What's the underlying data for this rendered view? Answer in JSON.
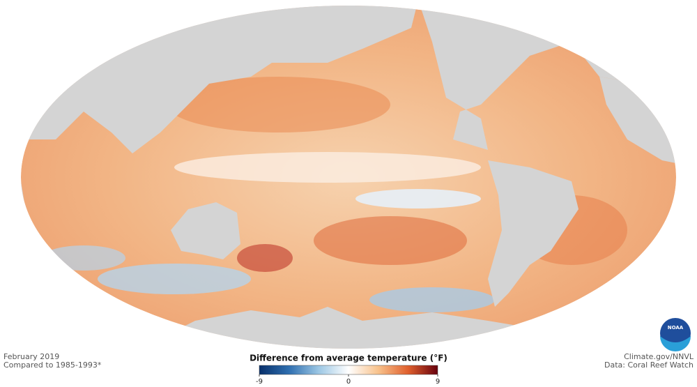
{
  "map": {
    "date": "February 2019",
    "baseline": "Compared to 1985-1993*",
    "credit": "Climate.gov/NNVL",
    "source": "Data: Coral Reef Watch",
    "logo": "NOAA",
    "colorbar": {
      "title": "Difference from average temperature (°F)",
      "lim": [
        -9,
        9
      ],
      "ticks": [
        -9,
        0,
        9
      ],
      "colors": [
        "#08306b",
        "#2f6fb0",
        "#9cc7e4",
        "#ffffff",
        "#f8c28c",
        "#e0602d",
        "#67000d"
      ]
    }
  }
}
